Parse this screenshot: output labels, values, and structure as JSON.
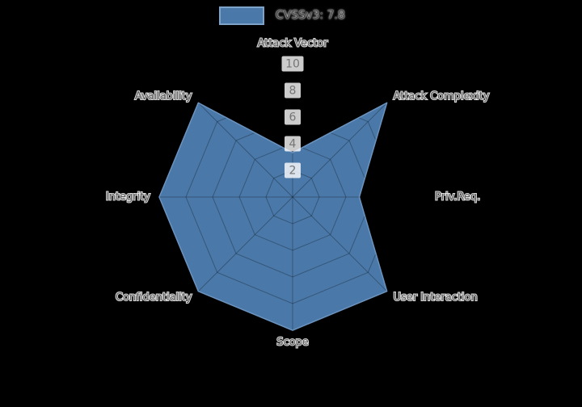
{
  "legend": {
    "label": "CVSSv3: 7.8"
  },
  "chart_data": {
    "type": "radar",
    "title": "",
    "categories": [
      "Attack Vector",
      "Attack Complexity",
      "Priv.Req.",
      "User Interaction",
      "Scope",
      "Confidentiality",
      "Integrity",
      "Availability"
    ],
    "series": [
      {
        "name": "CVSSv3: 7.8",
        "values": [
          3.33,
          10,
          5,
          10,
          10,
          10,
          10,
          10
        ]
      }
    ],
    "radial_ticks": [
      2,
      4,
      6,
      8,
      10
    ],
    "rlim": [
      0,
      10
    ],
    "grid": "spider-web",
    "legend_position": "top-center",
    "colors": {
      "background": "#000000",
      "fill": "#4a78a8",
      "stroke": "#6b93bf",
      "legend_swatch_border": "#7ea3c9",
      "grid_line": "rgba(0,0,0,0.28)",
      "axis_label": "#5c5c5c",
      "tick_label": "#757575",
      "tick_box": "rgba(255,255,255,0.8)",
      "legend_text": "#3d3d3d"
    }
  }
}
